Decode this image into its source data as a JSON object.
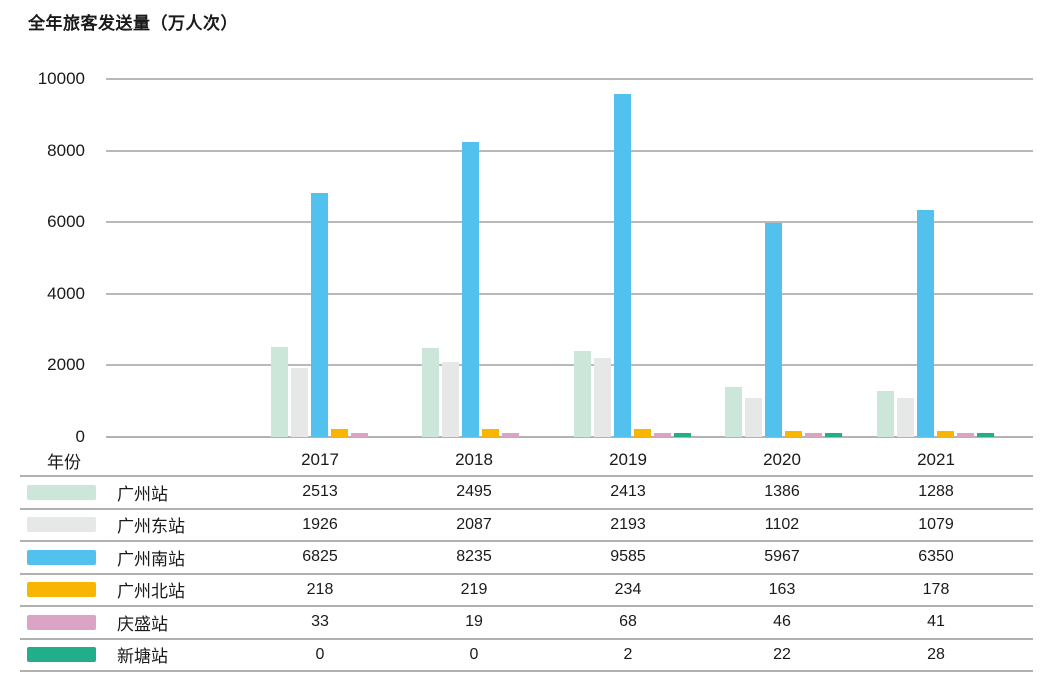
{
  "title": "全年旅客发送量（万人次）",
  "axis": {
    "x_header_label": "年份",
    "yticks": [
      0,
      2000,
      4000,
      6000,
      8000,
      10000
    ]
  },
  "colors": {
    "grid": "#b9b9b9",
    "table_border": "#b0b0b0",
    "text": "#1a1a1a"
  },
  "chart_data": {
    "type": "bar",
    "title": "全年旅客发送量（万人次）",
    "xlabel": "年份",
    "ylabel": "万人次",
    "ylim": [
      0,
      10000
    ],
    "yticks": [
      0,
      2000,
      4000,
      6000,
      8000,
      10000
    ],
    "grid": true,
    "legend_position": "table-below",
    "categories": [
      "2017",
      "2018",
      "2019",
      "2020",
      "2021"
    ],
    "series": [
      {
        "name": "广州站",
        "color": "#cde6da",
        "values": [
          2513,
          2495,
          2413,
          1386,
          1288
        ]
      },
      {
        "name": "广州东站",
        "color": "#e5e8e6",
        "values": [
          1926,
          2087,
          2193,
          1102,
          1079
        ]
      },
      {
        "name": "广州南站",
        "color": "#52c1ee",
        "values": [
          6825,
          8235,
          9585,
          5967,
          6350
        ]
      },
      {
        "name": "广州北站",
        "color": "#f8b501",
        "values": [
          218,
          219,
          234,
          163,
          178
        ]
      },
      {
        "name": "庆盛站",
        "color": "#dba4c5",
        "values": [
          33,
          19,
          68,
          46,
          41
        ]
      },
      {
        "name": "新塘站",
        "color": "#21ae89",
        "values": [
          0,
          0,
          2,
          22,
          28
        ]
      }
    ]
  }
}
